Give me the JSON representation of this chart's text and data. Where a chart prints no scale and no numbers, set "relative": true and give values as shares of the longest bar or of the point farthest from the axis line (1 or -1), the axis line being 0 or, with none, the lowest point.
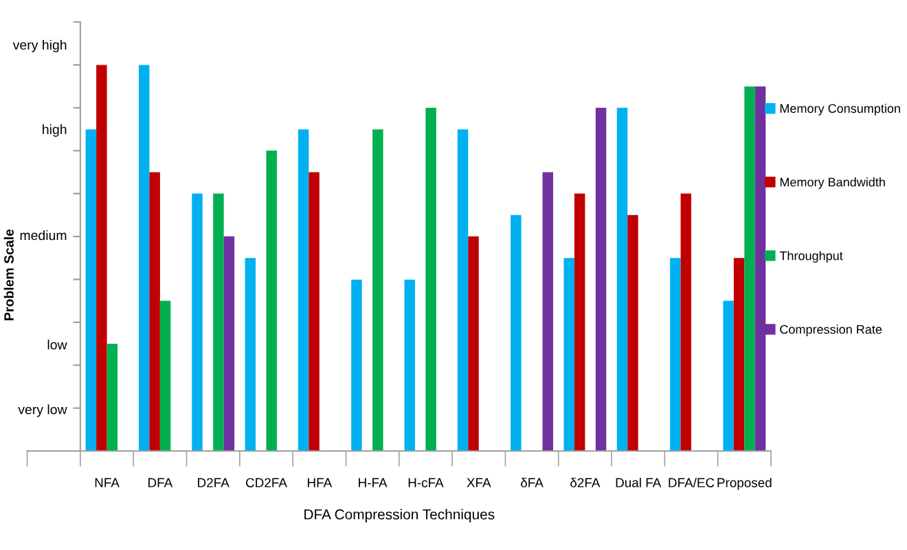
{
  "chart_data": {
    "type": "bar",
    "xlabel": "DFA Compression Techniques",
    "ylabel": "Problem Scale",
    "annotations": [
      "very high",
      "high",
      "medium",
      "low",
      "very low"
    ],
    "categories": [
      null,
      "NFA",
      "DFA",
      "D2FA",
      "CD2FA",
      "HFA",
      "H-FA",
      "H-cFA",
      "XFA",
      "δFA",
      "δ2FA",
      "Dual FA",
      "DFA/EC",
      "Proposed"
    ],
    "relative": true,
    "series": [
      {
        "name": "Memory Consumption",
        "color": "#00b0f0",
        "values": [
          null,
          0.833,
          1,
          0.667,
          0.5,
          0.833,
          0.444,
          0.444,
          0.833,
          0.611,
          0.5,
          0.889,
          0.5,
          0.389
        ]
      },
      {
        "name": "Memory Bandwidth",
        "color": "#c00000",
        "values": [
          null,
          1,
          0.722,
          null,
          null,
          0.722,
          null,
          null,
          0.556,
          null,
          0.667,
          0.611,
          0.667,
          0.5
        ]
      },
      {
        "name": "Throughput",
        "color": "#00b050",
        "values": [
          null,
          0.278,
          0.389,
          0.667,
          0.778,
          null,
          0.833,
          0.889,
          null,
          null,
          null,
          null,
          null,
          0.944
        ]
      },
      {
        "name": "Compression Rate",
        "color": "#7030a0",
        "values": [
          null,
          null,
          null,
          0.556,
          null,
          null,
          null,
          null,
          null,
          0.722,
          0.889,
          null,
          null,
          0.944
        ]
      }
    ],
    "grid": false,
    "legend": "right"
  }
}
